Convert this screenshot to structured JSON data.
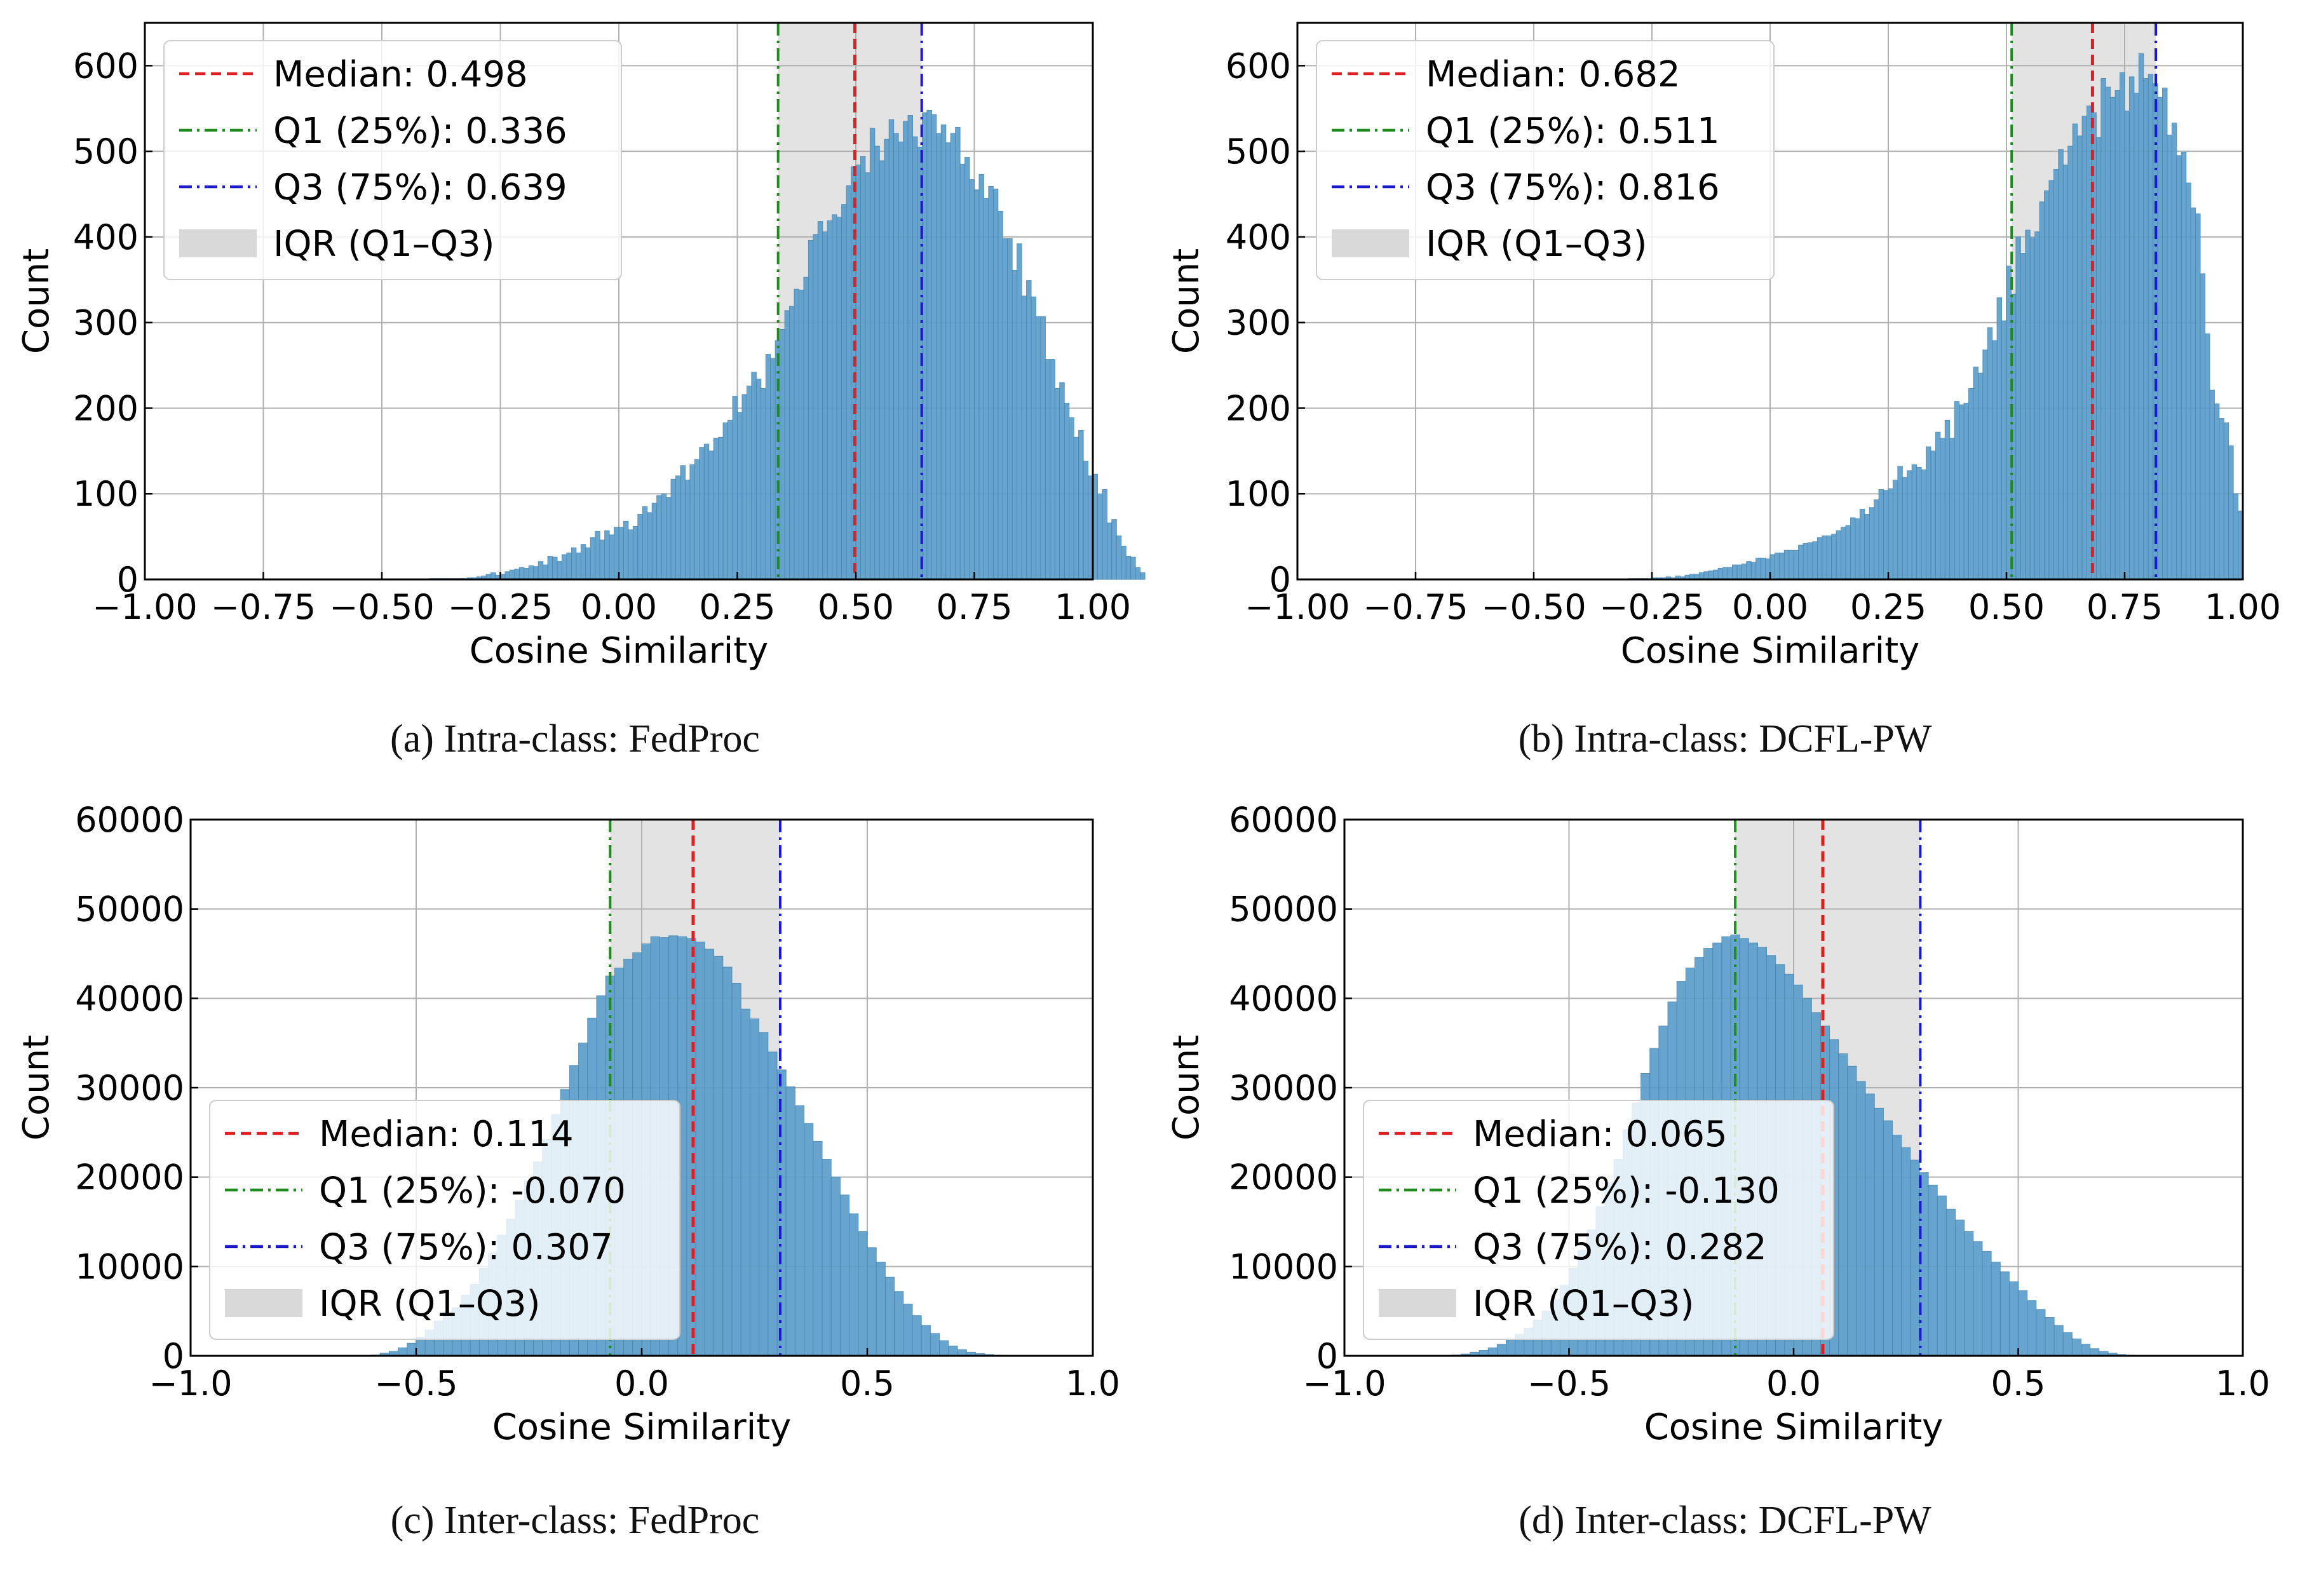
{
  "figure": {
    "panels": [
      {
        "id": "a",
        "caption": "(a) Intra-class: FedProc",
        "legend_position": "upper-left",
        "median_label": "Median: 0.498",
        "q1_label": "Q1 (25%): 0.336",
        "q3_label": "Q3 (75%): 0.639",
        "iqr_label": "IQR (Q1–Q3)"
      },
      {
        "id": "b",
        "caption": "(b) Intra-class: DCFL-PW",
        "legend_position": "upper-left",
        "median_label": "Median: 0.682",
        "q1_label": "Q1 (25%): 0.511",
        "q3_label": "Q3 (75%): 0.816",
        "iqr_label": "IQR (Q1–Q3)"
      },
      {
        "id": "c",
        "caption": "(c) Inter-class: FedProc",
        "legend_position": "lower-left",
        "median_label": "Median: 0.114",
        "q1_label": "Q1 (25%): -0.070",
        "q3_label": "Q3 (75%): 0.307",
        "iqr_label": "IQR (Q1–Q3)"
      },
      {
        "id": "d",
        "caption": "(d) Inter-class: DCFL-PW",
        "legend_position": "lower-left",
        "median_label": "Median: 0.065",
        "q1_label": "Q1 (25%): -0.130",
        "q3_label": "Q3 (75%): 0.282",
        "iqr_label": "IQR (Q1–Q3)"
      }
    ]
  },
  "colors": {
    "bars": "#5b9ecb",
    "bar_edge": "#4a89b5",
    "median_line": "#e02020",
    "q1_line": "#1f8a1f",
    "q3_line": "#1a1acc",
    "iqr_band": "#d9d9d9",
    "grid": "#b0b0b0"
  },
  "chart_data": [
    {
      "type": "bar",
      "title": "",
      "xlabel": "Cosine Similarity",
      "ylabel": "Count",
      "xlim": [
        -1.0,
        1.0
      ],
      "ylim": [
        0,
        650
      ],
      "xticks": [
        -1.0,
        -0.75,
        -0.5,
        -0.25,
        0.0,
        0.25,
        0.5,
        0.75,
        1.0
      ],
      "xtick_labels": [
        "−1.00",
        "−0.75",
        "−0.50",
        "−0.25",
        "0.00",
        "0.25",
        "0.50",
        "0.75",
        "1.00"
      ],
      "yticks": [
        0,
        100,
        200,
        300,
        400,
        500,
        600
      ],
      "ytick_labels": [
        "0",
        "100",
        "200",
        "300",
        "400",
        "500",
        "600"
      ],
      "grid": true,
      "bin_start": -0.4,
      "bin_width": 0.01,
      "counts": [
        1,
        1,
        1,
        1,
        1,
        1,
        1,
        1,
        2,
        2,
        3,
        4,
        6,
        8,
        5,
        6,
        9,
        11,
        12,
        14,
        13,
        16,
        15,
        21,
        17,
        27,
        26,
        21,
        29,
        31,
        37,
        31,
        41,
        37,
        49,
        56,
        46,
        57,
        52,
        61,
        61,
        68,
        58,
        62,
        76,
        85,
        78,
        89,
        98,
        100,
        96,
        117,
        121,
        133,
        116,
        134,
        140,
        154,
        158,
        150,
        165,
        166,
        183,
        186,
        214,
        195,
        216,
        226,
        242,
        234,
        223,
        263,
        258,
        279,
        292,
        314,
        319,
        339,
        338,
        353,
        396,
        403,
        418,
        406,
        419,
        426,
        423,
        438,
        460,
        482,
        484,
        494,
        475,
        527,
        506,
        489,
        514,
        537,
        521,
        511,
        535,
        542,
        517,
        505,
        545,
        548,
        543,
        521,
        531,
        510,
        521,
        528,
        485,
        493,
        467,
        455,
        473,
        445,
        459,
        456,
        430,
        398,
        398,
        361,
        392,
        331,
        349,
        330,
        307,
        307,
        257,
        257,
        223,
        230,
        206,
        189,
        166,
        174,
        138,
        121,
        123,
        100,
        105,
        66,
        70,
        51,
        39,
        27,
        26,
        14,
        8
      ],
      "median": 0.498,
      "q1": 0.336,
      "q3": 0.639
    },
    {
      "type": "bar",
      "title": "",
      "xlabel": "Cosine Similarity",
      "ylabel": "Count",
      "xlim": [
        -1.0,
        1.0
      ],
      "ylim": [
        0,
        650
      ],
      "xticks": [
        -1.0,
        -0.75,
        -0.5,
        -0.25,
        0.0,
        0.25,
        0.5,
        0.75,
        1.0
      ],
      "xtick_labels": [
        "−1.00",
        "−0.75",
        "−0.50",
        "−0.25",
        "0.00",
        "0.25",
        "0.50",
        "0.75",
        "1.00"
      ],
      "yticks": [
        0,
        100,
        200,
        300,
        400,
        500,
        600
      ],
      "ytick_labels": [
        "0",
        "100",
        "200",
        "300",
        "400",
        "500",
        "600"
      ],
      "grid": true,
      "bin_start": -0.3,
      "bin_width": 0.01,
      "counts": [
        1,
        1,
        1,
        1,
        1,
        2,
        2,
        2,
        3,
        2,
        4,
        3,
        5,
        6,
        6,
        8,
        9,
        10,
        11,
        13,
        14,
        14,
        17,
        17,
        18,
        21,
        20,
        25,
        25,
        24,
        29,
        31,
        31,
        34,
        34,
        34,
        40,
        42,
        43,
        44,
        49,
        51,
        51,
        53,
        57,
        61,
        63,
        72,
        71,
        82,
        76,
        84,
        93,
        105,
        104,
        106,
        116,
        132,
        119,
        127,
        134,
        131,
        128,
        155,
        150,
        172,
        165,
        186,
        165,
        208,
        204,
        206,
        223,
        248,
        241,
        268,
        294,
        279,
        329,
        302,
        366,
        333,
        400,
        381,
        408,
        399,
        406,
        441,
        454,
        466,
        479,
        502,
        484,
        506,
        532,
        518,
        541,
        553,
        545,
        516,
        585,
        575,
        563,
        571,
        592,
        547,
        587,
        568,
        614,
        585,
        590,
        579,
        563,
        574,
        519,
        533,
        495,
        499,
        463,
        434,
        427,
        357,
        287,
        221,
        205,
        188,
        183,
        156,
        100,
        80
      ],
      "median": 0.682,
      "q1": 0.511,
      "q3": 0.816
    },
    {
      "type": "bar",
      "title": "",
      "xlabel": "Cosine Similarity",
      "ylabel": "Count",
      "xlim": [
        -1.0,
        1.0
      ],
      "ylim": [
        0,
        60000
      ],
      "xticks": [
        -1.0,
        -0.5,
        0.0,
        0.5,
        1.0
      ],
      "xtick_labels": [
        "−1.0",
        "−0.5",
        "0.0",
        "0.5",
        "1.0"
      ],
      "yticks": [
        0,
        10000,
        20000,
        30000,
        40000,
        50000,
        60000
      ],
      "ytick_labels": [
        "0",
        "10000",
        "20000",
        "30000",
        "40000",
        "50000",
        "60000"
      ],
      "grid": true,
      "bin_start": -0.6,
      "bin_width": 0.02,
      "counts": [
        100,
        300,
        500,
        900,
        1400,
        2100,
        2900,
        3900,
        4900,
        5400,
        6800,
        8000,
        9800,
        11500,
        13500,
        15300,
        17400,
        19600,
        21700,
        24200,
        27000,
        29800,
        32500,
        35000,
        37800,
        40300,
        42500,
        43400,
        44400,
        45100,
        46100,
        46900,
        46800,
        47000,
        46900,
        46700,
        46300,
        45500,
        44700,
        43500,
        41700,
        38800,
        37700,
        36200,
        34000,
        32000,
        30100,
        28000,
        26000,
        24000,
        22000,
        20000,
        18000,
        15900,
        13900,
        12100,
        10500,
        8800,
        7200,
        5800,
        4500,
        3400,
        2500,
        1700,
        1100,
        700,
        400,
        250,
        150,
        80,
        40,
        20
      ],
      "median": 0.114,
      "q1": -0.07,
      "q3": 0.307
    },
    {
      "type": "bar",
      "title": "",
      "xlabel": "Cosine Similarity",
      "ylabel": "Count",
      "xlim": [
        -1.0,
        1.0
      ],
      "ylim": [
        0,
        60000
      ],
      "xticks": [
        -1.0,
        -0.5,
        0.0,
        0.5,
        1.0
      ],
      "xtick_labels": [
        "−1.0",
        "−0.5",
        "0.0",
        "0.5",
        "1.0"
      ],
      "yticks": [
        0,
        10000,
        20000,
        30000,
        40000,
        50000,
        60000
      ],
      "ytick_labels": [
        "0",
        "10000",
        "20000",
        "30000",
        "40000",
        "50000",
        "60000"
      ],
      "grid": true,
      "bin_start": -0.76,
      "bin_width": 0.02,
      "counts": [
        100,
        200,
        400,
        600,
        900,
        1300,
        1800,
        2400,
        3100,
        4000,
        5000,
        6300,
        7900,
        9800,
        11800,
        14100,
        16700,
        19400,
        22000,
        25300,
        28300,
        31600,
        34400,
        36900,
        39600,
        41900,
        43400,
        44600,
        45600,
        46200,
        46900,
        47100,
        46700,
        46200,
        45700,
        44800,
        43800,
        42700,
        41500,
        40000,
        38400,
        36900,
        35400,
        33800,
        32400,
        30700,
        29300,
        27700,
        26300,
        24700,
        23300,
        21900,
        20500,
        19100,
        17900,
        16400,
        15200,
        13900,
        12800,
        11700,
        10500,
        9400,
        8300,
        7300,
        6200,
        5200,
        4300,
        3400,
        2600,
        1900,
        1300,
        800,
        500,
        300,
        150,
        80
      ],
      "median": 0.065,
      "q1": -0.13,
      "q3": 0.282
    }
  ]
}
